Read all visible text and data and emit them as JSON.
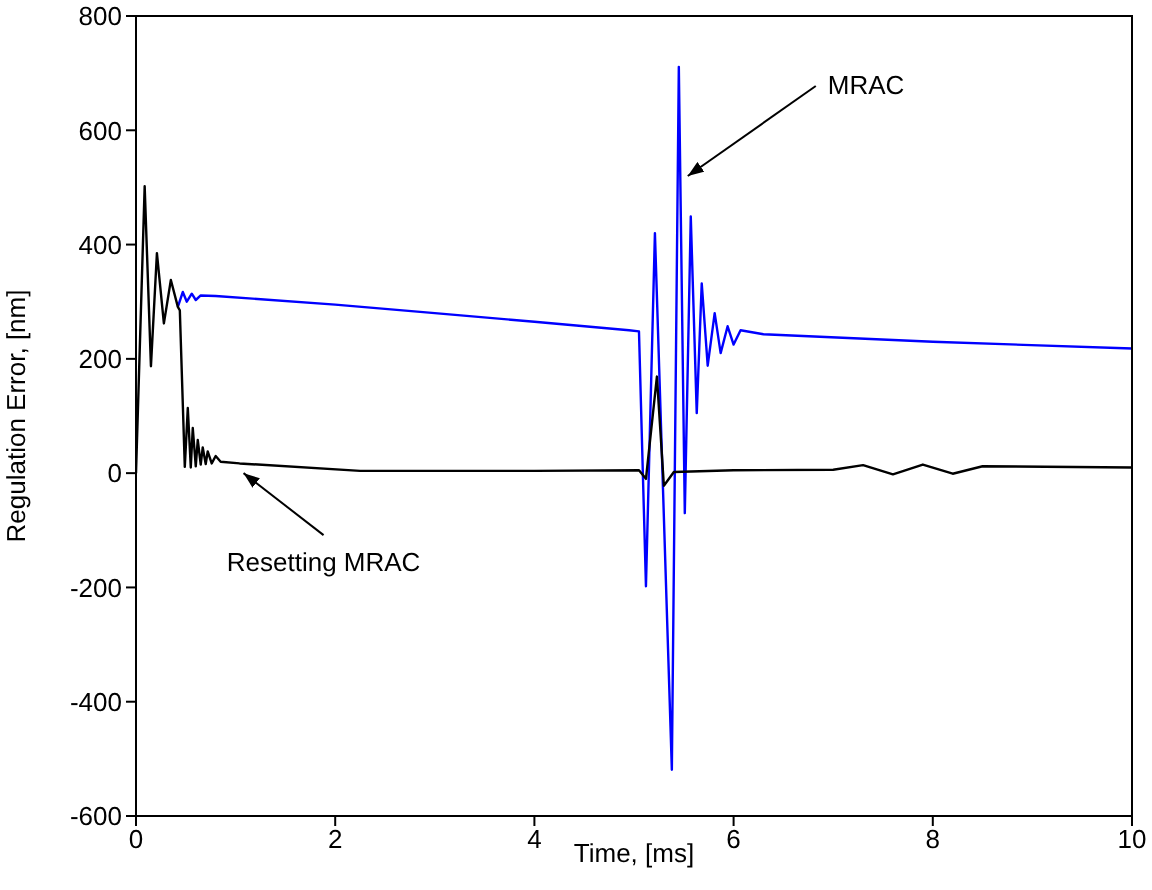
{
  "chart_data": {
    "type": "line",
    "xlabel": "Time, [ms]",
    "ylabel": "Regulation Error, [nm]",
    "xlim": [
      0,
      10
    ],
    "ylim": [
      -600,
      800
    ],
    "xticks": [
      0,
      2,
      4,
      6,
      8,
      10
    ],
    "yticks": [
      -600,
      -400,
      -200,
      0,
      200,
      400,
      600,
      800
    ],
    "grid": false,
    "marker": "none",
    "line_style": "solid",
    "series": [
      {
        "color": "#0000ff",
        "x": [
          0.42,
          0.47,
          0.51,
          0.56,
          0.6,
          0.65,
          0.8,
          2,
          3,
          4,
          4.95,
          5.05,
          5.12,
          5.21,
          5.38,
          5.45,
          5.51,
          5.57,
          5.63,
          5.68,
          5.74,
          5.81,
          5.87,
          5.94,
          6.0,
          6.07,
          6.3,
          8,
          10
        ],
        "values": [
          291,
          317,
          300,
          314,
          303,
          311,
          310,
          295,
          280,
          265,
          250,
          248,
          -198,
          420,
          -519,
          711,
          -70,
          449,
          105,
          332,
          188,
          280,
          210,
          257,
          225,
          250,
          243,
          230,
          218
        ]
      },
      {
        "color": "#000000",
        "x": [
          0,
          0.087,
          0.15,
          0.21,
          0.28,
          0.35,
          0.42,
          0.44,
          0.49,
          0.52,
          0.55,
          0.57,
          0.6,
          0.62,
          0.65,
          0.67,
          0.7,
          0.72,
          0.76,
          0.8,
          0.85,
          1.04,
          2.25,
          4,
          5.05,
          5.12,
          5.23,
          5.3,
          5.4,
          6,
          7,
          7.3,
          7.6,
          7.9,
          8.2,
          8.5,
          10
        ],
        "values": [
          0,
          502,
          187,
          385,
          262,
          338,
          291,
          285,
          11,
          114,
          10,
          79,
          12,
          58,
          15,
          45,
          16,
          38,
          17,
          30,
          20,
          17,
          4,
          4,
          5,
          -10,
          169,
          -22,
          2,
          5,
          6,
          14,
          -2,
          15,
          -1,
          12,
          10
        ]
      }
    ],
    "annotations": [
      {
        "text": "MRAC",
        "x": 5.54,
        "y": 520
      },
      {
        "text": "Resetting MRAC",
        "x": 1.08,
        "y": 0
      }
    ]
  }
}
